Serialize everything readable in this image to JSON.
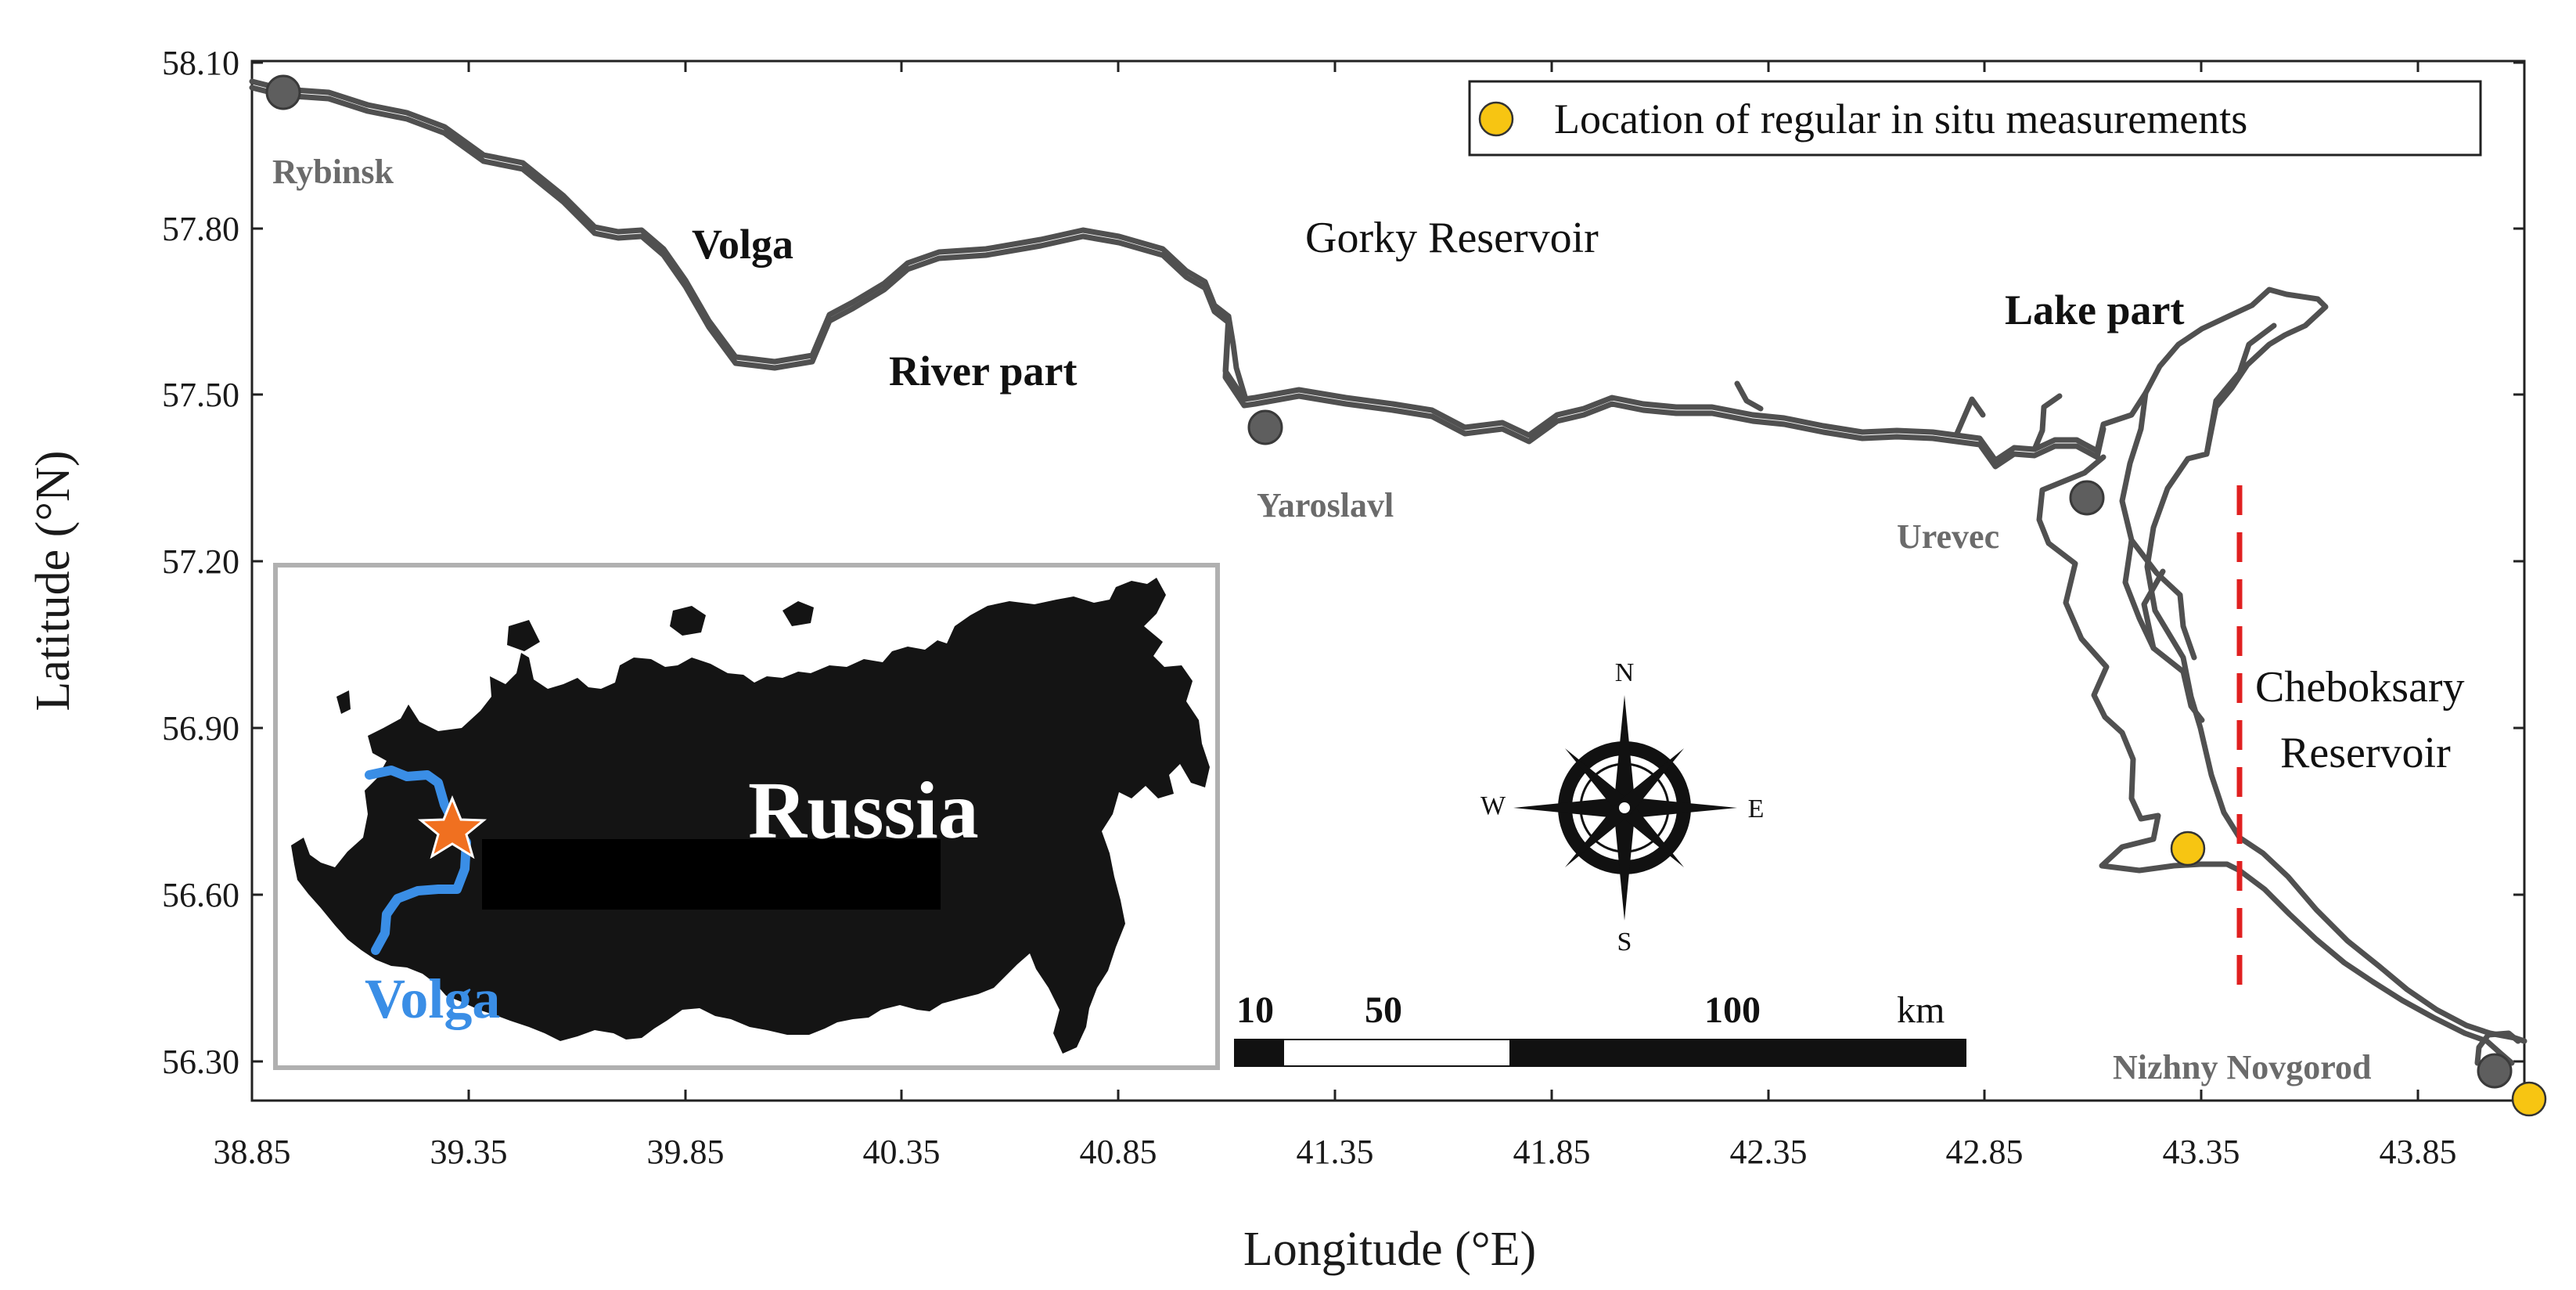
{
  "axes": {
    "x_label": "Longitude (°E)",
    "y_label": "Latitude (°N)",
    "x_ticks": [
      "38.85",
      "39.35",
      "39.85",
      "40.35",
      "40.85",
      "41.35",
      "41.85",
      "42.35",
      "42.85",
      "43.35",
      "43.85"
    ],
    "y_ticks": [
      "58.10",
      "57.80",
      "57.50",
      "57.20",
      "56.90",
      "56.60",
      "56.30"
    ]
  },
  "legend": {
    "label": "Location of regular in situ measurements"
  },
  "cities": {
    "rybinsk": "Rybinsk",
    "yaroslavl": "Yaroslavl",
    "urevec": "Urevec",
    "nizhny": "Nizhny Novgorod"
  },
  "labels": {
    "volga": "Volga",
    "gorky": "Gorky Reservoir",
    "river_part": "River part",
    "lake_part": "Lake part",
    "cheboksary_1": "Cheboksary",
    "cheboksary_2": "Reservoir"
  },
  "inset": {
    "country": "Russia",
    "river": "Volga"
  },
  "compass": {
    "n": "N",
    "s": "S",
    "e": "E",
    "w": "W"
  },
  "scalebar": {
    "t1": "10",
    "t2": "50",
    "t3": "100",
    "unit": "km"
  },
  "colors": {
    "river": "#505050",
    "station": "#5e5e5e",
    "measurement": "#f7c512",
    "boundary": "#e02020",
    "inset_river": "#3a8ee6",
    "inset_star": "#f07020"
  }
}
